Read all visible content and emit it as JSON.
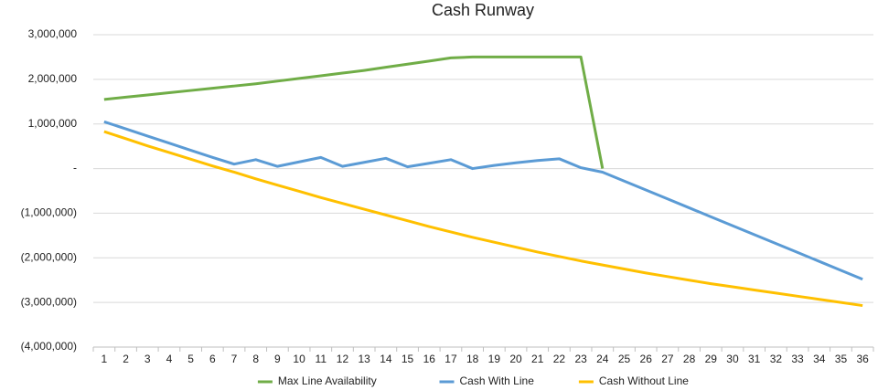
{
  "chart_data": {
    "type": "line",
    "title": "Cash Runway",
    "categories": [
      "1",
      "2",
      "3",
      "4",
      "5",
      "6",
      "7",
      "8",
      "9",
      "10",
      "11",
      "12",
      "13",
      "14",
      "15",
      "16",
      "17",
      "18",
      "19",
      "20",
      "21",
      "22",
      "23",
      "24",
      "25",
      "26",
      "27",
      "28",
      "29",
      "30",
      "31",
      "32",
      "33",
      "34",
      "35",
      "36"
    ],
    "series": [
      {
        "name": "Max Line Availability",
        "color": "#70ad47",
        "values": [
          1550000,
          1600000,
          1650000,
          1700000,
          1750000,
          1800000,
          1850000,
          1900000,
          1960000,
          2020000,
          2080000,
          2140000,
          2200000,
          2270000,
          2340000,
          2410000,
          2480000,
          2500000,
          2500000,
          2500000,
          2500000,
          2500000,
          2500000,
          0,
          null,
          null,
          null,
          null,
          null,
          null,
          null,
          null,
          null,
          null,
          null,
          null
        ]
      },
      {
        "name": "Cash With Line",
        "color": "#5b9bd5",
        "values": [
          1050000,
          890000,
          730000,
          570000,
          410000,
          250000,
          100000,
          200000,
          50000,
          150000,
          250000,
          50000,
          140000,
          230000,
          40000,
          120000,
          200000,
          0,
          70000,
          130000,
          180000,
          220000,
          20000,
          -80000,
          -280000,
          -480000,
          -680000,
          -880000,
          -1080000,
          -1280000,
          -1480000,
          -1680000,
          -1880000,
          -2080000,
          -2280000,
          -2480000
        ]
      },
      {
        "name": "Cash Without Line",
        "color": "#ffc000",
        "values": [
          830000,
          670000,
          510000,
          360000,
          210000,
          60000,
          -80000,
          -230000,
          -370000,
          -510000,
          -650000,
          -780000,
          -910000,
          -1040000,
          -1170000,
          -1300000,
          -1420000,
          -1540000,
          -1650000,
          -1760000,
          -1870000,
          -1970000,
          -2070000,
          -2160000,
          -2250000,
          -2340000,
          -2420000,
          -2500000,
          -2580000,
          -2650000,
          -2720000,
          -2790000,
          -2860000,
          -2930000,
          -3000000,
          -3070000
        ]
      }
    ],
    "ylim": [
      -4000000,
      3000000
    ],
    "yticks": [
      {
        "value": -4000000,
        "label": "(4,000,000)"
      },
      {
        "value": -3000000,
        "label": "(3,000,000)"
      },
      {
        "value": -2000000,
        "label": "(2,000,000)"
      },
      {
        "value": -1000000,
        "label": "(1,000,000)"
      },
      {
        "value": 0,
        "label": "-"
      },
      {
        "value": 1000000,
        "label": "1,000,000"
      },
      {
        "value": 2000000,
        "label": "2,000,000"
      },
      {
        "value": 3000000,
        "label": "3,000,000"
      }
    ],
    "grid": true,
    "legend": "bottom"
  }
}
